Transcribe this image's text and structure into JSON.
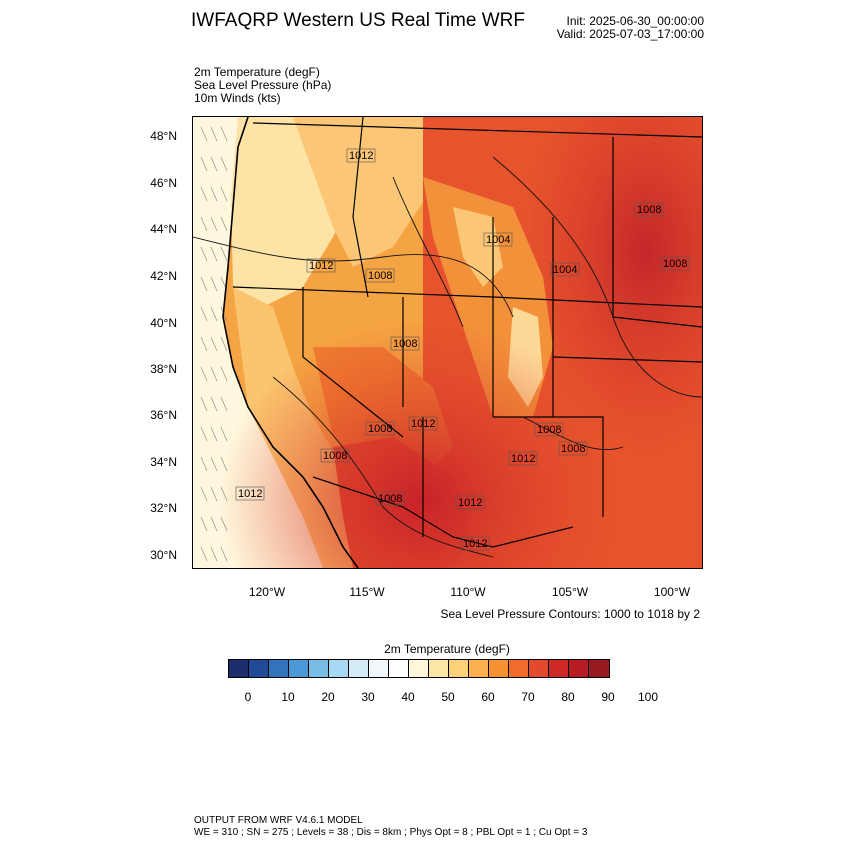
{
  "header": {
    "title": "IWFAQRP Western US Real Time WRF",
    "init": "Init: 2025-06-30_00:00:00",
    "valid": "Valid: 2025-07-03_17:00:00"
  },
  "fields": [
    "2m Temperature   (degF)",
    "Sea Level Pressure   (hPa)",
    "10m Winds   (kts)"
  ],
  "map": {
    "lat_labels": [
      "48°N",
      "46°N",
      "44°N",
      "42°N",
      "40°N",
      "38°N",
      "36°N",
      "34°N",
      "32°N",
      "30°N"
    ],
    "lon_labels": [
      "120°W",
      "115°W",
      "110°W",
      "105°W",
      "100°W"
    ],
    "pressure_labels": [
      "1012",
      "1012",
      "1012",
      "1008",
      "1008",
      "1004",
      "1004",
      "1008",
      "1008",
      "1008",
      "1012",
      "1012",
      "1008",
      "1008",
      "1012",
      "1008",
      "1012",
      "1008"
    ],
    "contour_note": "Sea Level Pressure Contours: 1000 to 1018 by 2"
  },
  "colorbar": {
    "title": "2m Temperature  (degF)",
    "colors": [
      "#1b2d6b",
      "#1f4b97",
      "#3173bd",
      "#4a98d5",
      "#78bde6",
      "#a6d9f3",
      "#d4ecf8",
      "#f3f8fc",
      "#ffffff",
      "#fff6dc",
      "#fde7a8",
      "#fdd17a",
      "#fcb04f",
      "#f79233",
      "#f06d2c",
      "#e24a2b",
      "#cd2a25",
      "#b61c22",
      "#961a1e"
    ],
    "ticks": [
      "0",
      "10",
      "20",
      "30",
      "40",
      "50",
      "60",
      "70",
      "80",
      "90",
      "100"
    ]
  },
  "footer": {
    "line1": "OUTPUT FROM WRF V4.6.1 MODEL",
    "line2": "WE = 310 ; SN = 275 ; Levels = 38 ; Dis = 8km ; Phys Opt = 8 ; PBL Opt = 1 ; Cu Opt = 3"
  }
}
